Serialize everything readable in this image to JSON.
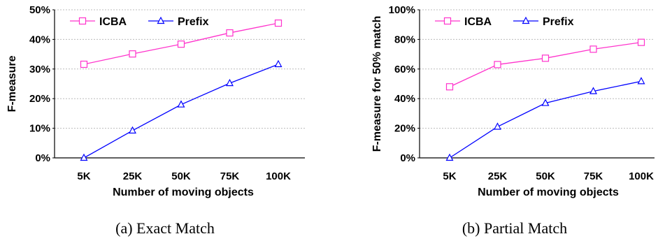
{
  "chart_data": [
    {
      "type": "line",
      "categories": [
        "5K",
        "25K",
        "50K",
        "75K",
        "100K"
      ],
      "ylabel": "F-measure",
      "xlabel": "Number of moving objects",
      "ylim": [
        0,
        50
      ],
      "yticks": [
        "0%",
        "10%",
        "20%",
        "30%",
        "40%",
        "50%"
      ],
      "grid": true,
      "legend_position": "top-left",
      "caption": "(a) Exact Match",
      "series": [
        {
          "name": "ICBA",
          "color": "#ff33cc",
          "marker": "square",
          "values": [
            31.6,
            35.1,
            38.4,
            42.2,
            45.5
          ]
        },
        {
          "name": "Prefix",
          "color": "#0000ff",
          "marker": "triangle",
          "values": [
            0,
            9.2,
            18,
            25.2,
            31.6
          ]
        }
      ]
    },
    {
      "type": "line",
      "categories": [
        "5K",
        "25K",
        "50K",
        "75K",
        "100K"
      ],
      "ylabel": "F-measure for 50% match",
      "xlabel": "Number of moving objects",
      "ylim": [
        0,
        100
      ],
      "yticks": [
        "0%",
        "20%",
        "40%",
        "60%",
        "80%",
        "100%"
      ],
      "grid": true,
      "legend_position": "top-left",
      "caption": "(b) Partial Match",
      "series": [
        {
          "name": "ICBA",
          "color": "#ff33cc",
          "marker": "square",
          "values": [
            48,
            63,
            67.3,
            73.4,
            78
          ]
        },
        {
          "name": "Prefix",
          "color": "#0000ff",
          "marker": "triangle",
          "values": [
            0,
            21,
            37,
            45,
            51.7
          ]
        }
      ]
    }
  ]
}
